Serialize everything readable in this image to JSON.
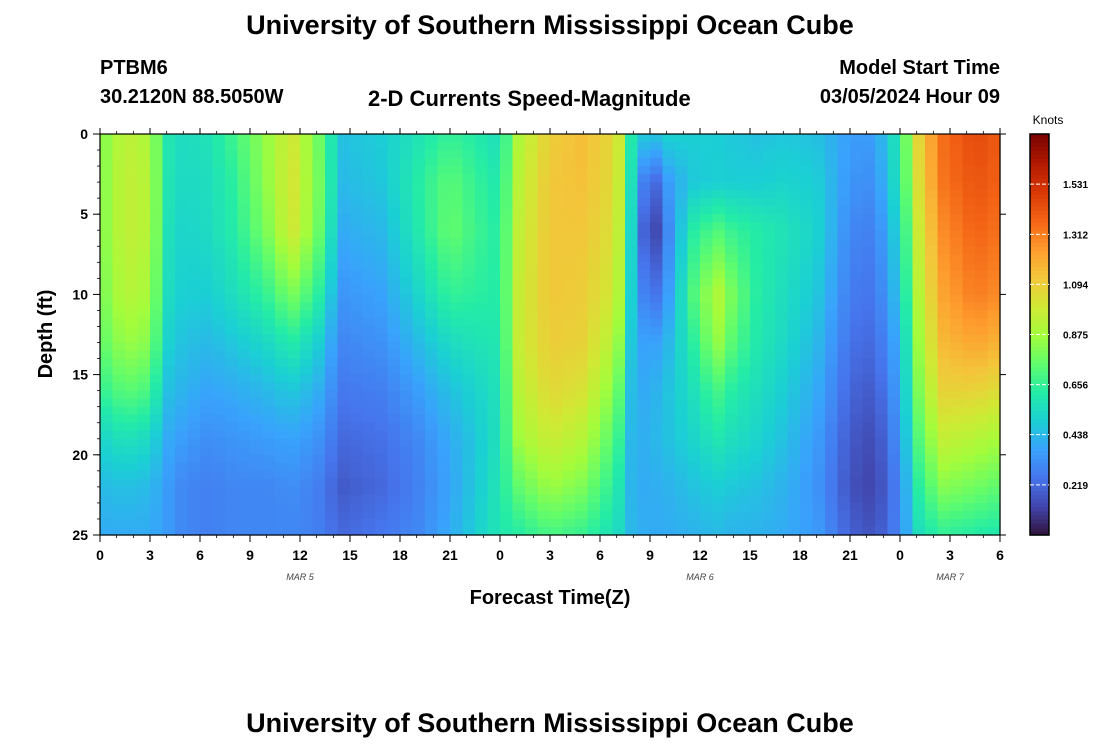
{
  "page": {
    "title": "University of Southern Mississippi Ocean Cube",
    "station": "PTBM6",
    "coords": "30.2120N  88.5050W",
    "subtitle": "2-D Currents Speed-Magnitude",
    "model_start_label": "Model Start Time",
    "model_start_value": "03/05/2024 Hour 09",
    "footer_title": "University of Southern Mississippi Ocean Cube"
  },
  "chart_data": {
    "type": "heatmap",
    "title": "2-D Currents Speed-Magnitude",
    "xlabel": "Forecast Time(Z)",
    "ylabel": "Depth (ft)",
    "x_range_hours": [
      0,
      54
    ],
    "y_range": [
      0,
      25
    ],
    "y_inverted": true,
    "x_tick_labels": [
      "0",
      "3",
      "6",
      "9",
      "12",
      "15",
      "18",
      "21",
      "0",
      "3",
      "6",
      "9",
      "12",
      "15",
      "18",
      "21",
      "0",
      "3",
      "6"
    ],
    "x_tick_hours": [
      0,
      3,
      6,
      9,
      12,
      15,
      18,
      21,
      24,
      27,
      30,
      33,
      36,
      39,
      42,
      45,
      48,
      51,
      54
    ],
    "y_ticks": [
      0,
      5,
      10,
      15,
      20,
      25
    ],
    "date_labels": [
      {
        "text": "MAR 5",
        "hour": 12
      },
      {
        "text": "MAR 6",
        "hour": 36
      },
      {
        "text": "MAR 7",
        "hour": 51
      }
    ],
    "colorbar": {
      "label": "Knots",
      "range": [
        0,
        1.75
      ],
      "ticks": [
        "1.531",
        "1.312",
        "1.094",
        "0.875",
        "0.656",
        "0.438",
        "0.219"
      ],
      "tick_values": [
        1.531,
        1.312,
        1.094,
        0.875,
        0.656,
        0.438,
        0.219
      ],
      "colors": [
        "#30123b",
        "#4145ab",
        "#4675ed",
        "#39a2fc",
        "#1bcfd4",
        "#24eca6",
        "#61fc6c",
        "#a4fc3b",
        "#d1e834",
        "#f3c63a",
        "#fe9b2d",
        "#f36315",
        "#d93806",
        "#b11901",
        "#7a0402"
      ]
    },
    "grid": "none",
    "speed_profiles_knots": {
      "note": "columns = forecast hour, rows = depth in ft; estimated from colors",
      "time_hours": [
        0,
        1.5,
        3,
        4,
        5,
        6.5,
        8,
        10,
        11.5,
        13,
        14.5,
        17,
        19,
        21,
        22.5,
        24,
        25,
        27,
        29,
        31,
        32,
        33,
        34,
        35.5,
        37,
        38,
        39.5,
        41,
        43,
        45,
        46.5,
        48,
        49,
        50.5,
        52.5,
        54
      ],
      "depth_ft": [
        0,
        3,
        6,
        10,
        13,
        16,
        19,
        22,
        25
      ],
      "values": [
        [
          0.8,
          0.8,
          0.8,
          0.78,
          0.74,
          0.65,
          0.52,
          0.44,
          0.4
        ],
        [
          0.95,
          0.96,
          0.96,
          0.93,
          0.86,
          0.74,
          0.58,
          0.46,
          0.4
        ],
        [
          0.9,
          0.92,
          0.92,
          0.88,
          0.82,
          0.7,
          0.54,
          0.44,
          0.4
        ],
        [
          0.6,
          0.6,
          0.58,
          0.56,
          0.52,
          0.46,
          0.4,
          0.36,
          0.36
        ],
        [
          0.55,
          0.54,
          0.52,
          0.5,
          0.46,
          0.42,
          0.36,
          0.3,
          0.3
        ],
        [
          0.58,
          0.56,
          0.55,
          0.5,
          0.44,
          0.38,
          0.32,
          0.28,
          0.28
        ],
        [
          0.68,
          0.64,
          0.62,
          0.56,
          0.48,
          0.4,
          0.34,
          0.3,
          0.3
        ],
        [
          0.85,
          0.84,
          0.8,
          0.66,
          0.54,
          0.44,
          0.36,
          0.3,
          0.3
        ],
        [
          1.0,
          1.02,
          1.0,
          0.8,
          0.62,
          0.48,
          0.38,
          0.32,
          0.3
        ],
        [
          0.8,
          0.82,
          0.8,
          0.66,
          0.52,
          0.42,
          0.34,
          0.28,
          0.28
        ],
        [
          0.46,
          0.44,
          0.4,
          0.34,
          0.3,
          0.26,
          0.22,
          0.18,
          0.22
        ],
        [
          0.5,
          0.48,
          0.44,
          0.38,
          0.33,
          0.28,
          0.24,
          0.22,
          0.26
        ],
        [
          0.58,
          0.62,
          0.6,
          0.52,
          0.44,
          0.36,
          0.3,
          0.28,
          0.3
        ],
        [
          0.66,
          0.74,
          0.76,
          0.66,
          0.55,
          0.46,
          0.4,
          0.38,
          0.4
        ],
        [
          0.62,
          0.66,
          0.68,
          0.64,
          0.58,
          0.52,
          0.48,
          0.48,
          0.5
        ],
        [
          0.56,
          0.6,
          0.62,
          0.62,
          0.6,
          0.58,
          0.58,
          0.6,
          0.6
        ],
        [
          0.9,
          0.92,
          0.94,
          0.96,
          0.96,
          0.92,
          0.86,
          0.74,
          0.62
        ],
        [
          1.1,
          1.12,
          1.12,
          1.12,
          1.1,
          1.06,
          0.98,
          0.86,
          0.7
        ],
        [
          1.15,
          1.14,
          1.12,
          1.1,
          1.08,
          1.02,
          0.92,
          0.8,
          0.66
        ],
        [
          1.05,
          1.04,
          1.02,
          0.98,
          0.9,
          0.8,
          0.7,
          0.62,
          0.56
        ],
        [
          0.55,
          0.5,
          0.46,
          0.44,
          0.42,
          0.4,
          0.4,
          0.4,
          0.42
        ],
        [
          0.45,
          0.15,
          0.05,
          0.2,
          0.35,
          0.4,
          0.42,
          0.4,
          0.4
        ],
        [
          0.52,
          0.35,
          0.28,
          0.34,
          0.42,
          0.46,
          0.46,
          0.42,
          0.4
        ],
        [
          0.5,
          0.48,
          0.62,
          0.7,
          0.62,
          0.56,
          0.52,
          0.46,
          0.42
        ],
        [
          0.5,
          0.5,
          0.72,
          0.92,
          0.86,
          0.7,
          0.6,
          0.5,
          0.44
        ],
        [
          0.48,
          0.5,
          0.66,
          0.78,
          0.72,
          0.62,
          0.56,
          0.48,
          0.42
        ],
        [
          0.46,
          0.5,
          0.62,
          0.62,
          0.6,
          0.56,
          0.52,
          0.46,
          0.42
        ],
        [
          0.48,
          0.52,
          0.58,
          0.56,
          0.54,
          0.5,
          0.46,
          0.42,
          0.4
        ],
        [
          0.46,
          0.5,
          0.52,
          0.48,
          0.44,
          0.4,
          0.36,
          0.34,
          0.36
        ],
        [
          0.36,
          0.34,
          0.3,
          0.27,
          0.24,
          0.21,
          0.18,
          0.16,
          0.2
        ],
        [
          0.36,
          0.32,
          0.28,
          0.25,
          0.22,
          0.18,
          0.14,
          0.12,
          0.16
        ],
        [
          0.62,
          0.6,
          0.54,
          0.48,
          0.42,
          0.38,
          0.34,
          0.3,
          0.3
        ],
        [
          1.05,
          1.02,
          0.96,
          0.9,
          0.84,
          0.78,
          0.7,
          0.62,
          0.55
        ],
        [
          1.35,
          1.33,
          1.28,
          1.22,
          1.16,
          1.08,
          0.96,
          0.82,
          0.65
        ],
        [
          1.45,
          1.42,
          1.38,
          1.32,
          1.22,
          1.08,
          0.92,
          0.78,
          0.62
        ],
        [
          1.4,
          1.38,
          1.34,
          1.28,
          1.18,
          1.04,
          0.88,
          0.74,
          0.6
        ]
      ]
    }
  }
}
